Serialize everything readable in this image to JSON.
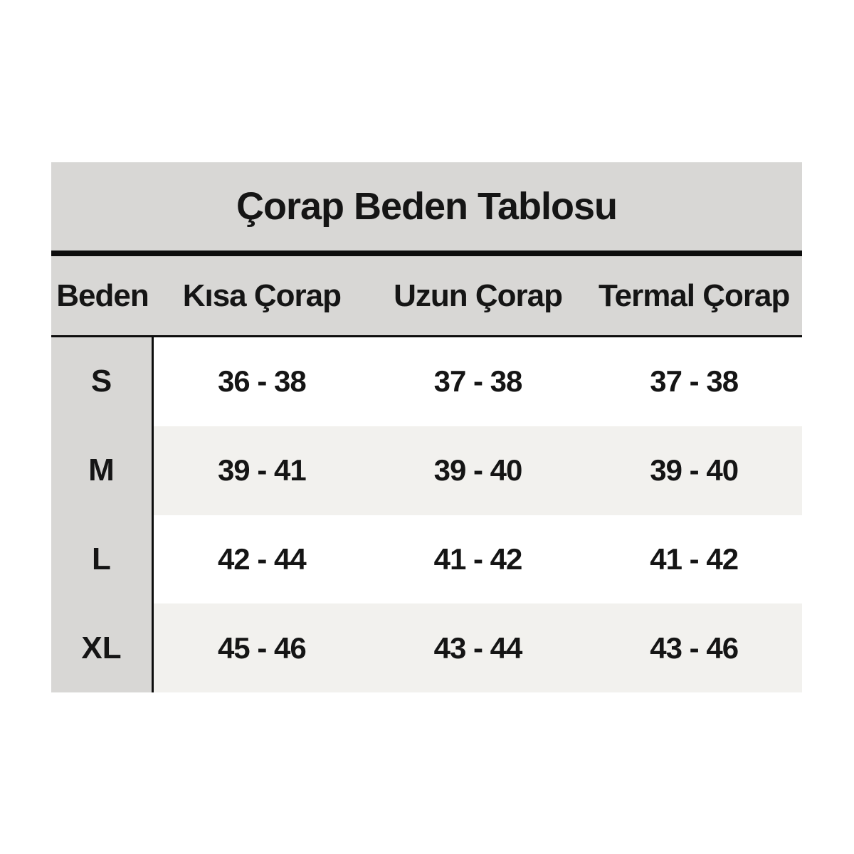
{
  "chart_data": {
    "type": "table",
    "title": "Çorap Beden Tablosu",
    "columns": [
      "Beden",
      "Kısa Çorap",
      "Uzun Çorap",
      "Termal Çorap"
    ],
    "rows": [
      [
        "S",
        "36 - 38",
        "37 - 38",
        "37 - 38"
      ],
      [
        "M",
        "39 - 41",
        "39 - 40",
        "39 - 40"
      ],
      [
        "L",
        "42 - 44",
        "41 - 42",
        "41 - 42"
      ],
      [
        "XL",
        "45 - 46",
        "43 - 44",
        "43 - 46"
      ]
    ],
    "layout_hints": {
      "zebra_striping": true,
      "label_column_shaded": true,
      "title_divider": "thick",
      "header_divider": "thin"
    }
  },
  "colors": {
    "header_bg": "#d8d7d5",
    "zebra_bg": "#f2f1ee",
    "row_bg": "#ffffff",
    "line": "#0d0d0d",
    "text": "#151515"
  }
}
